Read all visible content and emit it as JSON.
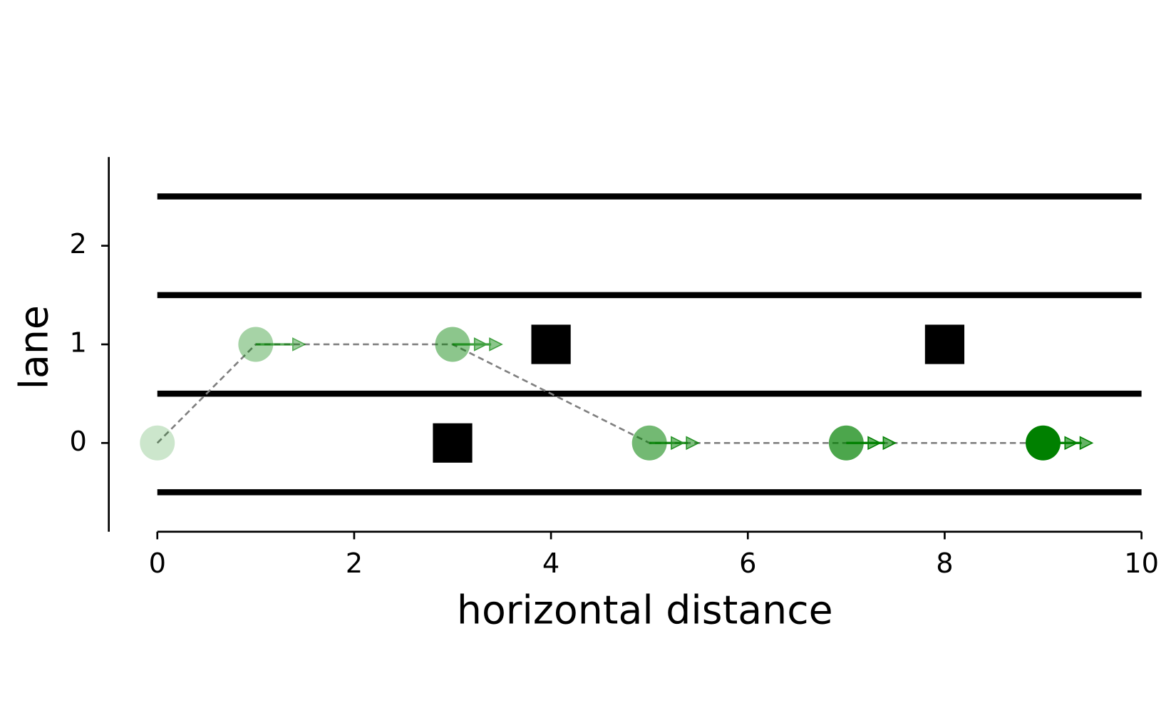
{
  "chart_data": {
    "type": "scatter",
    "xlabel": "horizontal distance",
    "ylabel": "lane",
    "xlim": [
      0,
      10
    ],
    "ylim": [
      -0.9,
      2.9
    ],
    "xticks": [
      0,
      2,
      4,
      6,
      8,
      10
    ],
    "yticks": [
      0,
      1,
      2
    ],
    "lane_lines": [
      -0.5,
      0.5,
      1.5,
      2.5
    ],
    "car": {
      "x": [
        0,
        1,
        3,
        5,
        7,
        9
      ],
      "y": [
        0,
        1,
        1,
        0,
        0,
        0
      ],
      "speed": [
        0,
        1,
        2,
        2,
        2,
        2
      ],
      "opacity": [
        0.2,
        0.35,
        0.45,
        0.55,
        0.7,
        1.0
      ],
      "color": "#008000"
    },
    "obstacles": {
      "x": [
        3,
        4,
        8
      ],
      "y": [
        0,
        1,
        1
      ],
      "color": "#000000"
    },
    "trajectory_color": "#808080"
  }
}
